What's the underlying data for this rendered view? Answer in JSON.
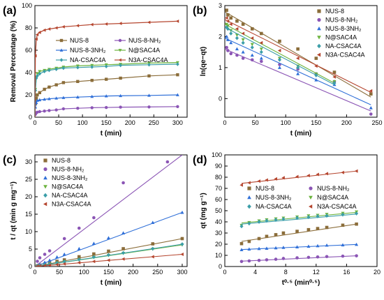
{
  "colors": {
    "NUS-8": "#8B6D3A",
    "NUS-8-NH2": "#8B55B5",
    "NUS-8-3NH2": "#2F6FD8",
    "N@SAC4A": "#6CB33E",
    "NA-CSAC4A": "#3B9EA8",
    "N3A-CSAC4A": "#B5452E"
  },
  "chart_data": [
    {
      "id": "a",
      "panel_label": "(a)",
      "type": "line",
      "xlabel": "t (min)",
      "ylabel": "Removal Percentage (%)",
      "xlim": [
        0,
        320
      ],
      "ylim": [
        0,
        100
      ],
      "xticks": [
        0,
        50,
        100,
        150,
        200,
        250,
        300
      ],
      "yticks": [
        0,
        20,
        40,
        60,
        80,
        100
      ],
      "legend": {
        "placement": "center-right",
        "columns": 2
      },
      "x": [
        0,
        1,
        3,
        5,
        10,
        20,
        30,
        45,
        60,
        90,
        120,
        150,
        180,
        240,
        300
      ],
      "series": [
        {
          "name": "NUS-8",
          "key": "NUS-8",
          "marker": "square",
          "values": [
            0,
            12,
            17,
            20,
            22,
            25,
            27,
            29,
            31,
            32,
            33,
            34,
            35,
            37,
            38
          ]
        },
        {
          "name": "NUS-8-NH₂",
          "key": "NUS-8-NH2",
          "marker": "circle",
          "values": [
            0,
            2.5,
            4,
            4.5,
            5,
            5.5,
            6,
            6.5,
            7.5,
            8,
            8.5,
            8.7,
            9,
            9.2,
            9.5
          ]
        },
        {
          "name": "NUS-8-3NH₂",
          "key": "NUS-8-3NH2",
          "marker": "triangle-up",
          "values": [
            0,
            9,
            13,
            15,
            15.5,
            16,
            16.5,
            17,
            17.5,
            18,
            18.5,
            19,
            19.2,
            19.5,
            20
          ]
        },
        {
          "name": "N@SAC4A",
          "key": "N@SAC4A",
          "marker": "triangle-down",
          "values": [
            0,
            25,
            36,
            39,
            41,
            42,
            43,
            44,
            45,
            46,
            46.5,
            47,
            47.5,
            48.5,
            49
          ]
        },
        {
          "name": "NA-CSAC4A",
          "key": "NA-CSAC4A",
          "marker": "diamond",
          "values": [
            0,
            24,
            35,
            37,
            39,
            41,
            42,
            43,
            44,
            44.5,
            45,
            45.5,
            46.5,
            47,
            47.5
          ]
        },
        {
          "name": "N3A-CSAC4A",
          "key": "N3A-CSAC4A",
          "marker": "triangle-left",
          "values": [
            0,
            55,
            70,
            74,
            76,
            78,
            79,
            80,
            81,
            82,
            83,
            83.5,
            84,
            85,
            86
          ]
        }
      ]
    },
    {
      "id": "b",
      "panel_label": "(b)",
      "type": "scatter",
      "xlabel": "t (min)",
      "ylabel": "ln(qe−qt)",
      "xlim": [
        0,
        250
      ],
      "ylim": [
        -0.6,
        3.0
      ],
      "xticks": [
        0,
        50,
        100,
        150,
        200,
        250
      ],
      "yticks": [
        0,
        1,
        2,
        3
      ],
      "legend": {
        "placement": "top-right",
        "columns": 1
      },
      "series": [
        {
          "name": "NUS-8",
          "key": "NUS-8",
          "marker": "square",
          "x": [
            3,
            5,
            10,
            20,
            30,
            45,
            60,
            90,
            120,
            150,
            180,
            240
          ],
          "y": [
            2.85,
            2.7,
            2.6,
            2.5,
            2.4,
            2.25,
            2.1,
            1.85,
            1.6,
            1.3,
            0.85,
            0.15
          ],
          "fit": [
            [
              0,
              2.8
            ],
            [
              240,
              0.05
            ]
          ]
        },
        {
          "name": "NUS-8-NH₂",
          "key": "NUS-8-NH2",
          "marker": "circle",
          "x": [
            3,
            5,
            10,
            20,
            30,
            45,
            60,
            90,
            120,
            150,
            180,
            240
          ],
          "y": [
            1.65,
            1.55,
            1.45,
            1.4,
            1.3,
            1.25,
            1.2,
            1.1,
            0.95,
            0.8,
            0.55,
            -0.5
          ],
          "fit": [
            [
              0,
              1.6
            ],
            [
              240,
              -0.4
            ]
          ]
        },
        {
          "name": "NUS-8-3NH₂",
          "key": "NUS-8-3NH2",
          "marker": "triangle-up",
          "x": [
            3,
            5,
            10,
            20,
            30,
            45,
            60,
            90,
            120,
            150,
            180,
            240
          ],
          "y": [
            2.0,
            1.9,
            1.8,
            1.6,
            1.5,
            1.4,
            1.3,
            1.0,
            0.8,
            0.6,
            0.45,
            -0.3
          ],
          "fit": [
            [
              0,
              1.95
            ],
            [
              240,
              -0.2
            ]
          ]
        },
        {
          "name": "N@SAC4A",
          "key": "N@SAC4A",
          "marker": "triangle-down",
          "x": [
            3,
            5,
            10,
            20,
            30,
            45,
            60,
            90,
            120,
            150,
            180
          ],
          "y": [
            2.4,
            2.35,
            2.2,
            2.05,
            1.9,
            1.75,
            1.6,
            1.3,
            1.05,
            0.8,
            0.55
          ],
          "fit": [
            [
              0,
              2.4
            ],
            [
              180,
              0.5
            ]
          ]
        },
        {
          "name": "NA-CSAC4A",
          "key": "NA-CSAC4A",
          "marker": "diamond",
          "x": [
            3,
            5,
            10,
            20,
            30,
            45,
            60,
            90,
            120,
            150,
            180
          ],
          "y": [
            2.3,
            2.25,
            2.1,
            1.95,
            1.8,
            1.65,
            1.5,
            1.25,
            1.0,
            0.75,
            0.5
          ],
          "fit": [
            [
              0,
              2.3
            ],
            [
              180,
              0.45
            ]
          ]
        },
        {
          "name": "N3A-CSAC4A",
          "key": "N3A-CSAC4A",
          "marker": "triangle-left",
          "x": [
            3,
            5,
            10,
            20,
            30,
            45,
            60,
            90,
            120,
            150,
            180,
            240
          ],
          "y": [
            2.6,
            2.5,
            2.4,
            2.25,
            2.1,
            1.95,
            1.8,
            1.55,
            1.3,
            1.05,
            0.7,
            0.25
          ],
          "fit": [
            [
              0,
              2.55
            ],
            [
              240,
              0.2
            ]
          ]
        }
      ]
    },
    {
      "id": "c",
      "panel_label": "(c)",
      "type": "scatter",
      "xlabel": "t (min)",
      "ylabel": "t / qt (min g mg⁻¹)",
      "xlim": [
        0,
        310
      ],
      "ylim": [
        0,
        32
      ],
      "xticks": [
        0,
        50,
        100,
        150,
        200,
        250,
        300
      ],
      "yticks": [
        0,
        5,
        10,
        15,
        20,
        25,
        30
      ],
      "legend": {
        "placement": "top-left",
        "columns": 1
      },
      "series": [
        {
          "name": "NUS-8",
          "key": "NUS-8",
          "marker": "square",
          "x": [
            5,
            10,
            20,
            30,
            45,
            60,
            90,
            120,
            150,
            180,
            240,
            300
          ],
          "y": [
            0.2,
            0.4,
            0.7,
            1.0,
            1.5,
            1.9,
            2.8,
            3.6,
            4.4,
            5.1,
            6.5,
            8.0
          ],
          "fit": [
            [
              0,
              0
            ],
            [
              300,
              8.0
            ]
          ]
        },
        {
          "name": "NUS-8-NH₂",
          "key": "NUS-8-NH2",
          "marker": "circle",
          "x": [
            5,
            10,
            20,
            30,
            60,
            90,
            120,
            180,
            270
          ],
          "y": [
            1.5,
            2.5,
            3.5,
            4.5,
            8.0,
            11.0,
            14.0,
            24.0,
            30.0
          ],
          "fit": [
            [
              0,
              0
            ],
            [
              300,
              32
            ]
          ]
        },
        {
          "name": "NUS-8-3NH₂",
          "key": "NUS-8-3NH2",
          "marker": "triangle-up",
          "x": [
            5,
            10,
            20,
            30,
            45,
            60,
            90,
            120,
            150,
            180,
            240,
            300
          ],
          "y": [
            0.3,
            0.6,
            1.2,
            1.8,
            2.7,
            3.5,
            5.1,
            6.6,
            8.2,
            9.6,
            12.6,
            15.5
          ],
          "fit": [
            [
              0,
              0
            ],
            [
              300,
              15.5
            ]
          ]
        },
        {
          "name": "N@SAC4A",
          "key": "N@SAC4A",
          "marker": "triangle-down",
          "x": [
            5,
            10,
            20,
            30,
            45,
            60,
            90,
            120,
            150,
            180,
            240,
            300
          ],
          "y": [
            0.12,
            0.24,
            0.47,
            0.7,
            1.0,
            1.35,
            1.95,
            2.6,
            3.2,
            3.8,
            5.0,
            6.2
          ],
          "fit": [
            [
              0,
              0
            ],
            [
              300,
              6.2
            ]
          ]
        },
        {
          "name": "NA-CSAC4A",
          "key": "NA-CSAC4A",
          "marker": "diamond",
          "x": [
            5,
            10,
            20,
            30,
            45,
            60,
            90,
            120,
            150,
            180,
            240,
            300
          ],
          "y": [
            0.13,
            0.25,
            0.49,
            0.72,
            1.05,
            1.4,
            2.0,
            2.7,
            3.3,
            3.9,
            5.1,
            6.4
          ],
          "fit": [
            [
              0,
              0
            ],
            [
              300,
              6.4
            ]
          ]
        },
        {
          "name": "N3A-CSAC4A",
          "key": "N3A-CSAC4A",
          "marker": "triangle-left",
          "x": [
            5,
            10,
            20,
            30,
            45,
            60,
            90,
            120,
            150,
            180,
            240,
            300
          ],
          "y": [
            0.07,
            0.13,
            0.26,
            0.38,
            0.56,
            0.75,
            1.1,
            1.45,
            1.8,
            2.15,
            2.8,
            3.5
          ],
          "fit": [
            [
              0,
              0
            ],
            [
              300,
              3.5
            ]
          ]
        }
      ]
    },
    {
      "id": "d",
      "panel_label": "(d)",
      "type": "scatter",
      "xlabel": "t⁰·⁵ (min⁰·⁵)",
      "ylabel": "qt (mg g⁻¹)",
      "xlim": [
        0,
        20
      ],
      "ylim": [
        0,
        100
      ],
      "xticks": [
        0,
        4,
        8,
        12,
        16,
        20
      ],
      "yticks": [
        0,
        10,
        20,
        30,
        40,
        50,
        60,
        70,
        80,
        90,
        100
      ],
      "legend": {
        "placement": "center",
        "columns": 2
      },
      "series": [
        {
          "name": "NUS-8",
          "key": "NUS-8",
          "marker": "square",
          "x": [
            2.2,
            3.2,
            4.5,
            5.5,
            6.7,
            7.7,
            9.5,
            11.0,
            12.2,
            13.4,
            15.5,
            17.3
          ],
          "y": [
            20.5,
            22.5,
            25,
            27,
            28.5,
            30,
            31.5,
            33,
            34,
            35,
            37,
            38
          ],
          "fit": [
            [
              2.2,
              22.5
            ],
            [
              17.3,
              38
            ]
          ]
        },
        {
          "name": "NUS-8-NH₂",
          "key": "NUS-8-NH2",
          "marker": "circle",
          "x": [
            2.2,
            3.2,
            4.5,
            5.5,
            6.7,
            7.7,
            9.5,
            11.0,
            12.2,
            13.4,
            15.5,
            17.3
          ],
          "y": [
            4.5,
            5,
            5.5,
            6,
            6.5,
            7.2,
            7.8,
            8.2,
            8.6,
            8.9,
            9.3,
            9.6
          ],
          "fit": [
            [
              2.2,
              4.8
            ],
            [
              17.3,
              9.6
            ]
          ]
        },
        {
          "name": "NUS-8-3NH₂",
          "key": "NUS-8-3NH2",
          "marker": "triangle-up",
          "x": [
            2.2,
            3.2,
            4.5,
            5.5,
            6.7,
            7.7,
            9.5,
            11.0,
            12.2,
            13.4,
            15.5,
            17.3
          ],
          "y": [
            15,
            15.5,
            16,
            16.2,
            16.6,
            17,
            17.5,
            18,
            18.5,
            19,
            19.3,
            19.7
          ],
          "fit": [
            [
              2.2,
              15.2
            ],
            [
              17.3,
              19.8
            ]
          ]
        },
        {
          "name": "N@SAC4A",
          "key": "N@SAC4A",
          "marker": "triangle-down",
          "x": [
            2.2,
            3.2,
            4.5,
            5.5,
            6.7,
            7.7,
            9.5,
            11.0,
            12.2,
            13.4,
            15.5,
            17.3
          ],
          "y": [
            37,
            39.5,
            41,
            42,
            42.8,
            43.5,
            44.5,
            45.5,
            46,
            46.8,
            47.8,
            49
          ],
          "fit": [
            [
              2.2,
              39
            ],
            [
              17.3,
              48.5
            ]
          ]
        },
        {
          "name": "NA-CSAC4A",
          "key": "NA-CSAC4A",
          "marker": "diamond",
          "x": [
            2.2,
            3.2,
            4.5,
            5.5,
            6.7,
            7.7,
            9.5,
            11.0,
            12.2,
            13.4,
            15.5,
            17.3
          ],
          "y": [
            36,
            38.5,
            40,
            41,
            41.8,
            42.5,
            43.5,
            44.2,
            45,
            45.5,
            46.5,
            47.5
          ],
          "fit": [
            [
              2.2,
              38
            ],
            [
              17.3,
              47
            ]
          ]
        },
        {
          "name": "N3A-CSAC4A",
          "key": "N3A-CSAC4A",
          "marker": "triangle-left",
          "x": [
            2.2,
            3.2,
            4.5,
            5.5,
            6.7,
            7.7,
            9.5,
            11.0,
            12.2,
            13.4,
            15.5,
            17.3
          ],
          "y": [
            73,
            75,
            76.5,
            77.5,
            78.5,
            79.5,
            80.5,
            81.5,
            82.5,
            83.2,
            84.2,
            85.5
          ],
          "fit": [
            [
              2.2,
              74.5
            ],
            [
              17.3,
              85.5
            ]
          ]
        }
      ]
    }
  ]
}
